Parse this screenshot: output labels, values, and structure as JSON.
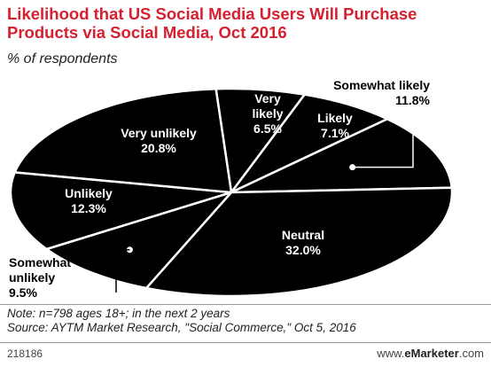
{
  "chart_data": {
    "type": "pie",
    "title": "Likelihood that US Social Media Users Will Purchase Products via Social Media, Oct 2016",
    "subtitle": "% of respondents",
    "unit": "%",
    "series": [
      {
        "label": "Very likely",
        "value": 6.5
      },
      {
        "label": "Likely",
        "value": 7.1
      },
      {
        "label": "Somewhat likely",
        "value": 11.8
      },
      {
        "label": "Neutral",
        "value": 32.0
      },
      {
        "label": "Somewhat unlikely",
        "value": 9.5
      },
      {
        "label": "Unlikely",
        "value": 12.3
      },
      {
        "label": "Very unlikely",
        "value": 20.8
      }
    ],
    "value_labels": [
      "6.5%",
      "7.1%",
      "11.8%",
      "32.0%",
      "9.5%",
      "12.3%",
      "20.8%"
    ]
  },
  "footer": {
    "note": "Note: n=798 ages 18+; in the next 2 years",
    "source": "Source: AYTM Market Research, \"Social Commerce,\" Oct 5, 2016",
    "chart_id": "218186",
    "brand_prefix": "www.",
    "brand_name": "eMarketer",
    "brand_suffix": ".com"
  },
  "colors": {
    "title": "#d5202f",
    "slice_fill": "#000000",
    "slice_stroke": "#ffffff",
    "label_in": "#ffffff",
    "label_out": "#000000"
  }
}
